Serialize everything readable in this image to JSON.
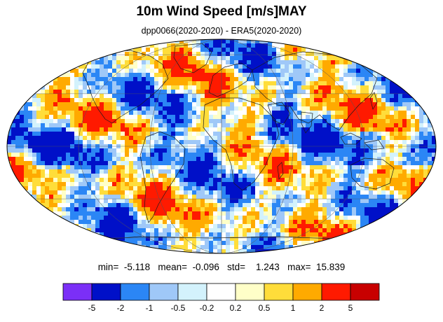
{
  "title": "10m Wind Speed [m/s]MAY",
  "subtitle": "dpp0066(2020-2020) - ERA5(2020-2020)",
  "stats": {
    "min_label": "min=",
    "min": "-5.118",
    "mean_label": "mean=",
    "mean": "-0.096",
    "std_label": "std=",
    "std": "1.243",
    "max_label": "max=",
    "max": "15.839"
  },
  "projection": "mollweide",
  "colorbar": {
    "colors": [
      "#7b2ff7",
      "#0010c8",
      "#2b86f5",
      "#9fc8f8",
      "#d3f2fc",
      "#ffffff",
      "#ffffc8",
      "#ffdd3a",
      "#ffaa00",
      "#ff1a00",
      "#c80000"
    ],
    "labels": [
      "-5",
      "-2",
      "-1",
      "-0.5",
      "-0.2",
      "0.2",
      "0.5",
      "1",
      "2",
      "5"
    ]
  }
}
